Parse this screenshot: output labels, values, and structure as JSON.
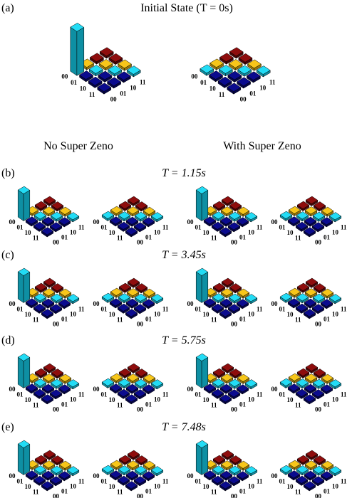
{
  "header": {
    "label": "(a)",
    "title": "Initial State (T = 0s)"
  },
  "columns": [
    "No Super Zeno",
    "With Super Zeno"
  ],
  "basis": [
    "00",
    "01",
    "10",
    "11"
  ],
  "rows": [
    {
      "label": "(b)",
      "title": "T = 1.15s"
    },
    {
      "label": "(c)",
      "title": "T = 3.45s"
    },
    {
      "label": "(d)",
      "title": "T = 5.75s"
    },
    {
      "label": "(e)",
      "title": "T = 7.48s"
    }
  ]
}
